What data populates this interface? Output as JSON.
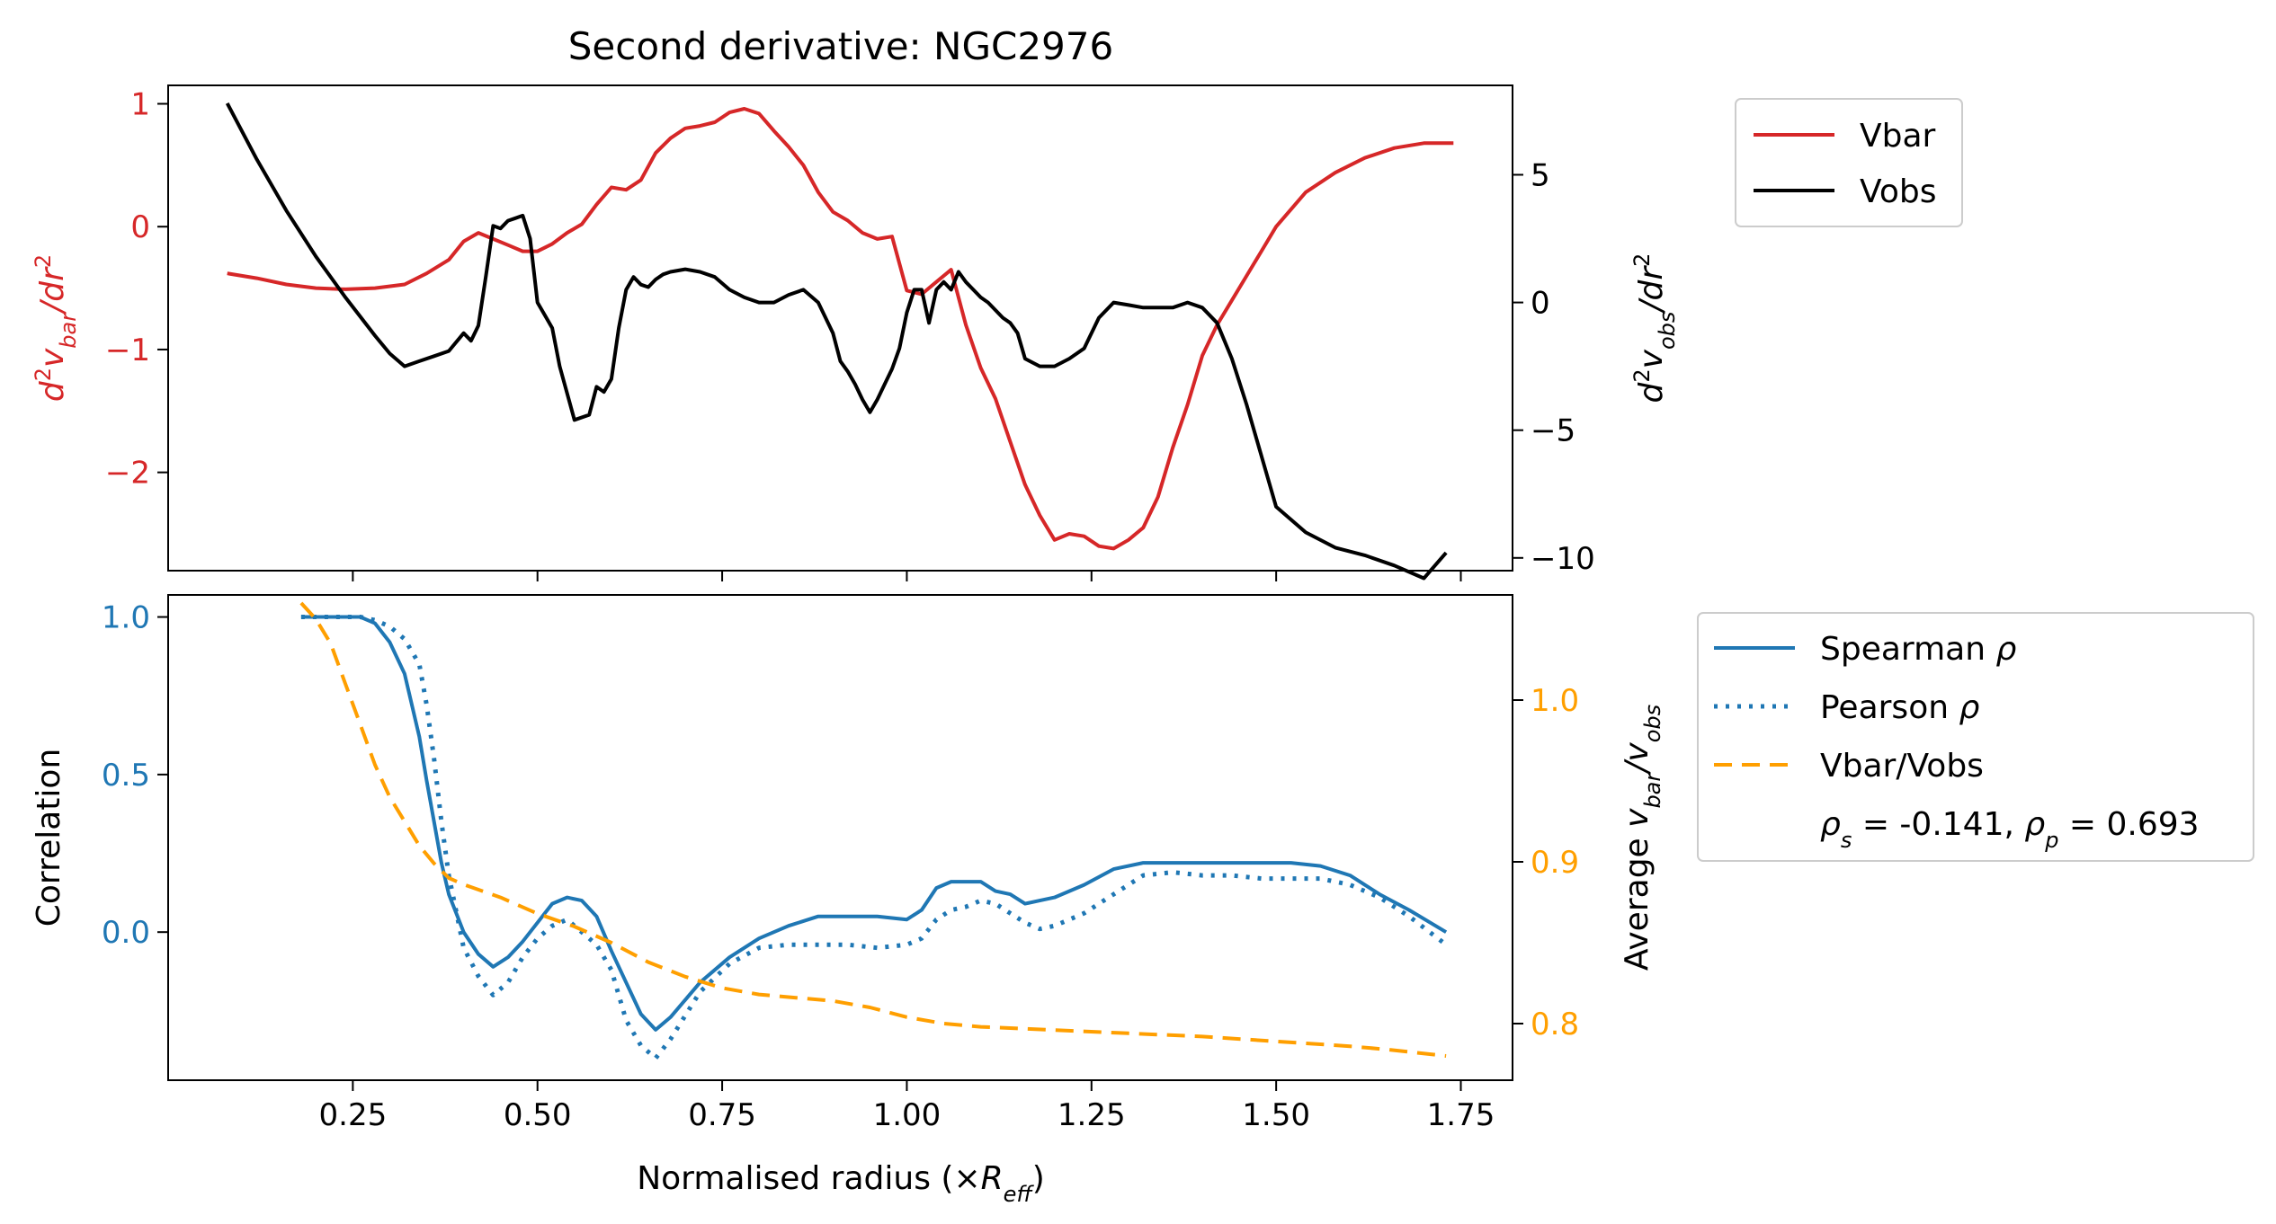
{
  "chart_data": [
    {
      "type": "line",
      "title": "Second derivative: NGC2976",
      "x_axis": {
        "range": [
          0.0,
          1.82
        ],
        "ticks": [
          0.25,
          0.5,
          0.75,
          1.0,
          1.25,
          1.5,
          1.75
        ],
        "tick_labels_shown": false
      },
      "y_left": {
        "label": "d²v_bar/dr²",
        "label_main": "d",
        "label_sup1": "2",
        "label_v": "v",
        "label_sub": "bar",
        "label_tail": "/dr",
        "label_sup2": "2",
        "color": "#d62728",
        "range": [
          -2.8,
          1.15
        ],
        "ticks": [
          1,
          0,
          -1,
          -2
        ],
        "tick_labels": [
          "1",
          "0",
          "−1",
          "−2"
        ]
      },
      "y_right": {
        "label": "d²v_obs/dr²",
        "label_main": "d",
        "label_sup1": "2",
        "label_v": "v",
        "label_sub": "obs",
        "label_tail": "/dr",
        "label_sup2": "2",
        "color": "#000000",
        "range": [
          -10.5,
          8.5
        ],
        "ticks": [
          5,
          0,
          -5,
          -10
        ],
        "tick_labels": [
          "5",
          "0",
          "−5",
          "−10"
        ]
      },
      "legend": {
        "placement": "outside-right-top",
        "entries": [
          {
            "name": "Vbar",
            "color": "#d62728",
            "style": "solid"
          },
          {
            "name": "Vobs",
            "color": "#000000",
            "style": "solid"
          }
        ]
      },
      "series": [
        {
          "name": "Vbar",
          "axis": "left",
          "color": "#d62728",
          "style": "solid",
          "x": [
            0.08,
            0.12,
            0.16,
            0.2,
            0.24,
            0.28,
            0.32,
            0.35,
            0.38,
            0.4,
            0.42,
            0.44,
            0.46,
            0.48,
            0.5,
            0.52,
            0.54,
            0.56,
            0.58,
            0.6,
            0.62,
            0.64,
            0.66,
            0.68,
            0.7,
            0.72,
            0.74,
            0.76,
            0.78,
            0.8,
            0.82,
            0.84,
            0.86,
            0.88,
            0.9,
            0.92,
            0.94,
            0.96,
            0.98,
            1.0,
            1.02,
            1.04,
            1.06,
            1.08,
            1.1,
            1.12,
            1.14,
            1.16,
            1.18,
            1.2,
            1.22,
            1.24,
            1.26,
            1.28,
            1.3,
            1.32,
            1.34,
            1.36,
            1.38,
            1.4,
            1.42,
            1.44,
            1.46,
            1.48,
            1.5,
            1.54,
            1.58,
            1.62,
            1.66,
            1.7,
            1.74
          ],
          "y": [
            -0.38,
            -0.42,
            -0.47,
            -0.5,
            -0.51,
            -0.5,
            -0.47,
            -0.38,
            -0.27,
            -0.12,
            -0.05,
            -0.1,
            -0.15,
            -0.2,
            -0.2,
            -0.14,
            -0.05,
            0.02,
            0.18,
            0.32,
            0.3,
            0.38,
            0.6,
            0.72,
            0.8,
            0.82,
            0.85,
            0.93,
            0.96,
            0.92,
            0.78,
            0.65,
            0.5,
            0.28,
            0.12,
            0.05,
            -0.05,
            -0.1,
            -0.08,
            -0.52,
            -0.55,
            -0.45,
            -0.35,
            -0.8,
            -1.15,
            -1.4,
            -1.75,
            -2.1,
            -2.35,
            -2.55,
            -2.5,
            -2.52,
            -2.6,
            -2.62,
            -2.55,
            -2.45,
            -2.2,
            -1.8,
            -1.45,
            -1.05,
            -0.8,
            -0.6,
            -0.4,
            -0.2,
            0.0,
            0.28,
            0.44,
            0.56,
            0.64,
            0.68,
            0.68
          ]
        },
        {
          "name": "Vobs",
          "axis": "right",
          "color": "#000000",
          "style": "solid",
          "x": [
            0.08,
            0.12,
            0.16,
            0.2,
            0.24,
            0.28,
            0.3,
            0.32,
            0.34,
            0.36,
            0.38,
            0.4,
            0.41,
            0.42,
            0.43,
            0.44,
            0.45,
            0.46,
            0.47,
            0.48,
            0.49,
            0.5,
            0.51,
            0.52,
            0.53,
            0.55,
            0.57,
            0.58,
            0.59,
            0.6,
            0.61,
            0.62,
            0.63,
            0.64,
            0.65,
            0.66,
            0.67,
            0.68,
            0.7,
            0.72,
            0.74,
            0.76,
            0.78,
            0.8,
            0.82,
            0.84,
            0.86,
            0.88,
            0.9,
            0.91,
            0.92,
            0.93,
            0.94,
            0.95,
            0.96,
            0.97,
            0.98,
            0.99,
            1.0,
            1.01,
            1.02,
            1.03,
            1.04,
            1.05,
            1.06,
            1.07,
            1.08,
            1.09,
            1.1,
            1.11,
            1.12,
            1.13,
            1.14,
            1.15,
            1.16,
            1.18,
            1.2,
            1.22,
            1.24,
            1.26,
            1.28,
            1.3,
            1.32,
            1.34,
            1.36,
            1.38,
            1.4,
            1.42,
            1.44,
            1.46,
            1.48,
            1.5,
            1.54,
            1.58,
            1.62,
            1.66,
            1.7,
            1.73
          ],
          "y": [
            7.8,
            5.6,
            3.6,
            1.8,
            0.2,
            -1.3,
            -2.0,
            -2.5,
            -2.3,
            -2.1,
            -1.9,
            -1.2,
            -1.5,
            -0.9,
            1.0,
            3.0,
            2.9,
            3.2,
            3.3,
            3.4,
            2.5,
            0.0,
            -0.5,
            -1.0,
            -2.5,
            -4.6,
            -4.4,
            -3.3,
            -3.5,
            -3.0,
            -1.0,
            0.5,
            1.0,
            0.7,
            0.6,
            0.9,
            1.1,
            1.2,
            1.3,
            1.2,
            1.0,
            0.5,
            0.2,
            0.0,
            0.0,
            0.3,
            0.5,
            0.0,
            -1.2,
            -2.3,
            -2.7,
            -3.2,
            -3.8,
            -4.3,
            -3.8,
            -3.2,
            -2.6,
            -1.8,
            -0.4,
            0.5,
            0.5,
            -0.8,
            0.5,
            0.8,
            0.5,
            1.2,
            0.8,
            0.5,
            0.2,
            0.0,
            -0.3,
            -0.6,
            -0.8,
            -1.2,
            -2.2,
            -2.5,
            -2.5,
            -2.2,
            -1.8,
            -0.6,
            0.0,
            -0.1,
            -0.2,
            -0.2,
            -0.2,
            0.0,
            -0.2,
            -0.8,
            -2.2,
            -4.0,
            -6.0,
            -8.0,
            -9.0,
            -9.6,
            -9.9,
            -10.3,
            -10.8,
            -9.8
          ]
        }
      ]
    },
    {
      "type": "line",
      "x_axis": {
        "label": "Normalised radius (×R_eff)",
        "label_main": "Normalised radius (×",
        "label_r": "R",
        "label_sub": "eff",
        "label_close": ")",
        "range": [
          0.0,
          1.82
        ],
        "ticks": [
          0.25,
          0.5,
          0.75,
          1.0,
          1.25,
          1.5,
          1.75
        ],
        "tick_labels": [
          "0.25",
          "0.50",
          "0.75",
          "1.00",
          "1.25",
          "1.50",
          "1.75"
        ]
      },
      "y_left": {
        "label": "Correlation",
        "color": "#1f77b4",
        "range": [
          -0.47,
          1.07
        ],
        "ticks": [
          1.0,
          0.5,
          0.0
        ],
        "tick_labels": [
          "1.0",
          "0.5",
          "0.0"
        ]
      },
      "y_right": {
        "label": "Average v_bar/v_obs",
        "label_main": "Average ",
        "label_v1": "v",
        "label_sub1": "bar",
        "label_slash": "/",
        "label_v2": "v",
        "label_sub2": "obs",
        "color": "#ff9f00",
        "range": [
          0.765,
          1.065
        ],
        "ticks": [
          1.0,
          0.9,
          0.8
        ],
        "tick_labels": [
          "1.0",
          "0.9",
          "0.8"
        ]
      },
      "legend": {
        "placement": "outside-right-top",
        "entries": [
          {
            "name": "Spearman ρ",
            "text_main": "Spearman ",
            "text_greek": "ρ",
            "color": "#1f77b4",
            "style": "solid"
          },
          {
            "name": "Pearson ρ",
            "text_main": "Pearson ",
            "text_greek": "ρ",
            "color": "#1f77b4",
            "style": "dotted"
          },
          {
            "name": "Vbar/Vobs",
            "color": "#ff9f00",
            "style": "dashed"
          }
        ],
        "annotation": "ρs = -0.141, ρp = 0.693",
        "annotation_parts": {
          "rho": "ρ",
          "sub_s": "s",
          "eq_s": " = -0.141, ",
          "sub_p": "p",
          "eq_p": " = 0.693"
        }
      },
      "series": [
        {
          "name": "Spearman ρ",
          "axis": "left",
          "color": "#1f77b4",
          "style": "solid",
          "x": [
            0.18,
            0.2,
            0.22,
            0.24,
            0.26,
            0.28,
            0.3,
            0.32,
            0.34,
            0.35,
            0.36,
            0.37,
            0.38,
            0.4,
            0.42,
            0.44,
            0.46,
            0.48,
            0.5,
            0.52,
            0.54,
            0.56,
            0.58,
            0.6,
            0.62,
            0.64,
            0.66,
            0.68,
            0.72,
            0.76,
            0.8,
            0.84,
            0.88,
            0.9,
            0.92,
            0.96,
            1.0,
            1.02,
            1.04,
            1.06,
            1.08,
            1.1,
            1.12,
            1.14,
            1.16,
            1.18,
            1.2,
            1.24,
            1.28,
            1.32,
            1.36,
            1.4,
            1.44,
            1.48,
            1.52,
            1.56,
            1.6,
            1.64,
            1.68,
            1.73
          ],
          "y": [
            1.0,
            1.0,
            1.0,
            1.0,
            1.0,
            0.98,
            0.92,
            0.82,
            0.62,
            0.48,
            0.35,
            0.22,
            0.12,
            0.0,
            -0.07,
            -0.11,
            -0.08,
            -0.03,
            0.03,
            0.09,
            0.11,
            0.1,
            0.05,
            -0.06,
            -0.16,
            -0.26,
            -0.31,
            -0.27,
            -0.16,
            -0.08,
            -0.02,
            0.02,
            0.05,
            0.05,
            0.05,
            0.05,
            0.04,
            0.07,
            0.14,
            0.16,
            0.16,
            0.16,
            0.13,
            0.12,
            0.09,
            0.1,
            0.11,
            0.15,
            0.2,
            0.22,
            0.22,
            0.22,
            0.22,
            0.22,
            0.22,
            0.21,
            0.18,
            0.12,
            0.07,
            0.0
          ]
        },
        {
          "name": "Pearson ρ",
          "axis": "left",
          "color": "#1f77b4",
          "style": "dotted",
          "x": [
            0.18,
            0.2,
            0.22,
            0.24,
            0.26,
            0.28,
            0.3,
            0.32,
            0.34,
            0.35,
            0.36,
            0.37,
            0.38,
            0.4,
            0.42,
            0.44,
            0.46,
            0.48,
            0.5,
            0.52,
            0.54,
            0.56,
            0.58,
            0.6,
            0.62,
            0.64,
            0.66,
            0.68,
            0.72,
            0.76,
            0.8,
            0.84,
            0.88,
            0.92,
            0.96,
            1.0,
            1.02,
            1.04,
            1.06,
            1.08,
            1.1,
            1.12,
            1.14,
            1.16,
            1.18,
            1.2,
            1.24,
            1.28,
            1.32,
            1.36,
            1.4,
            1.44,
            1.48,
            1.52,
            1.56,
            1.6,
            1.64,
            1.68,
            1.73
          ],
          "y": [
            1.0,
            1.0,
            1.0,
            1.0,
            1.0,
            0.99,
            0.97,
            0.93,
            0.85,
            0.72,
            0.55,
            0.35,
            0.18,
            -0.05,
            -0.14,
            -0.2,
            -0.16,
            -0.08,
            -0.02,
            0.02,
            0.04,
            0.0,
            -0.04,
            -0.12,
            -0.28,
            -0.36,
            -0.4,
            -0.34,
            -0.19,
            -0.1,
            -0.05,
            -0.04,
            -0.04,
            -0.04,
            -0.05,
            -0.04,
            -0.02,
            0.04,
            0.07,
            0.08,
            0.1,
            0.09,
            0.06,
            0.03,
            0.01,
            0.02,
            0.06,
            0.12,
            0.18,
            0.19,
            0.18,
            0.18,
            0.17,
            0.17,
            0.17,
            0.15,
            0.11,
            0.05,
            -0.04
          ]
        },
        {
          "name": "Vbar/Vobs",
          "axis": "right",
          "color": "#ff9f00",
          "style": "dashed",
          "x": [
            0.18,
            0.2,
            0.22,
            0.24,
            0.26,
            0.28,
            0.3,
            0.32,
            0.34,
            0.36,
            0.38,
            0.4,
            0.45,
            0.5,
            0.55,
            0.6,
            0.65,
            0.7,
            0.75,
            0.8,
            0.85,
            0.9,
            0.95,
            1.0,
            1.05,
            1.1,
            1.2,
            1.3,
            1.4,
            1.5,
            1.6,
            1.65,
            1.73
          ],
          "y": [
            1.06,
            1.05,
            1.035,
            1.01,
            0.985,
            0.96,
            0.94,
            0.925,
            0.91,
            0.899,
            0.89,
            0.886,
            0.878,
            0.868,
            0.86,
            0.85,
            0.838,
            0.829,
            0.822,
            0.818,
            0.816,
            0.814,
            0.81,
            0.804,
            0.8,
            0.798,
            0.796,
            0.794,
            0.792,
            0.789,
            0.786,
            0.784,
            0.78
          ]
        }
      ]
    }
  ]
}
